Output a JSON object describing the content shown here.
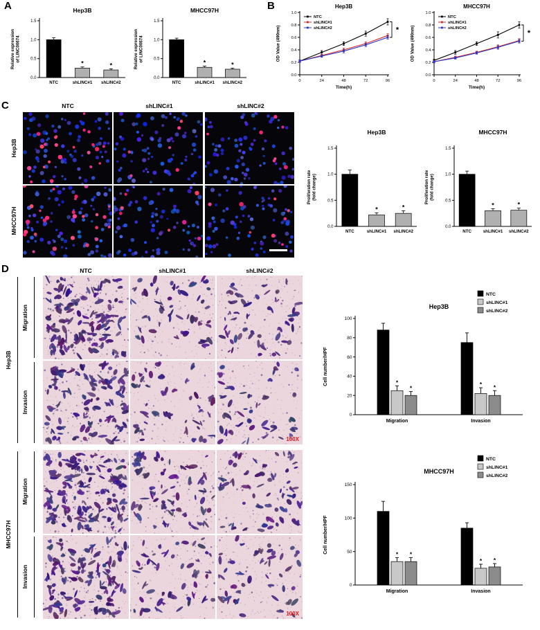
{
  "panels": {
    "A": "A",
    "B": "B",
    "C": "C",
    "D": "D"
  },
  "panelC": {
    "col_labels": [
      "NTC",
      "shLINC#1",
      "shLINC#2"
    ],
    "row_labels": [
      "Hep3B",
      "MHCC97H"
    ],
    "stain_colors": {
      "nuclei": "#3342d6",
      "proliferating": "#e8357d",
      "background": "#06060a"
    },
    "images": [
      {
        "cell_line": "Hep3B",
        "treatment": "NTC",
        "blue_cells": 80,
        "red_cells": 22
      },
      {
        "cell_line": "Hep3B",
        "treatment": "shLINC#1",
        "blue_cells": 85,
        "red_cells": 6
      },
      {
        "cell_line": "Hep3B",
        "treatment": "shLINC#2",
        "blue_cells": 78,
        "red_cells": 7
      },
      {
        "cell_line": "MHCC97H",
        "treatment": "NTC",
        "blue_cells": 90,
        "red_cells": 26
      },
      {
        "cell_line": "MHCC97H",
        "treatment": "shLINC#1",
        "blue_cells": 82,
        "red_cells": 7
      },
      {
        "cell_line": "MHCC97H",
        "treatment": "shLINC#2",
        "blue_cells": 80,
        "red_cells": 8,
        "scalebar": true
      }
    ]
  },
  "panelD": {
    "col_labels": [
      "NTC",
      "shLINC#1",
      "shLINC#2"
    ],
    "row_groups": [
      {
        "cell_line": "Hep3B",
        "assays": [
          "Migration",
          "Invasion"
        ]
      },
      {
        "cell_line": "MHCC97H",
        "assays": [
          "Migration",
          "Invasion"
        ]
      }
    ],
    "stain_colors": {
      "background": "#ecd6dd",
      "cells": "#4a2d7a"
    },
    "mag_color": "#e01515",
    "images": [
      {
        "cell_line": "Hep3B",
        "assay": "Migration",
        "treatment": "NTC",
        "cells": 130
      },
      {
        "cell_line": "Hep3B",
        "assay": "Migration",
        "treatment": "shLINC#1",
        "cells": 48
      },
      {
        "cell_line": "Hep3B",
        "assay": "Migration",
        "treatment": "shLINC#2",
        "cells": 52
      },
      {
        "cell_line": "Hep3B",
        "assay": "Invasion",
        "treatment": "NTC",
        "cells": 100
      },
      {
        "cell_line": "Hep3B",
        "assay": "Invasion",
        "treatment": "shLINC#1",
        "cells": 42
      },
      {
        "cell_line": "Hep3B",
        "assay": "Invasion",
        "treatment": "shLINC#2",
        "cells": 40,
        "mag_label": "100X"
      },
      {
        "cell_line": "MHCC97H",
        "assay": "Migration",
        "treatment": "NTC",
        "cells": 140
      },
      {
        "cell_line": "MHCC97H",
        "assay": "Migration",
        "treatment": "shLINC#1",
        "cells": 62
      },
      {
        "cell_line": "MHCC97H",
        "assay": "Migration",
        "treatment": "shLINC#2",
        "cells": 56
      },
      {
        "cell_line": "MHCC97H",
        "assay": "Invasion",
        "treatment": "NTC",
        "cells": 108
      },
      {
        "cell_line": "MHCC97H",
        "assay": "Invasion",
        "treatment": "shLINC#1",
        "cells": 46
      },
      {
        "cell_line": "MHCC97H",
        "assay": "Invasion",
        "treatment": "shLINC#2",
        "cells": 44,
        "mag_label": "100X"
      }
    ]
  },
  "chart_data": [
    {
      "id": "expr_hep3b",
      "type": "bar",
      "title": "Hep3B",
      "ylabel": "Relative expression\nof LINC00674",
      "categories": [
        "NTC",
        "shLINC#1",
        "shLINC#2"
      ],
      "values": [
        1.0,
        0.25,
        0.2
      ],
      "errors": [
        0.05,
        0.03,
        0.03
      ],
      "sig": [
        "",
        "*",
        "*"
      ],
      "colors": [
        "#000000",
        "#b0b0b0",
        "#b0b0b0"
      ],
      "ylim": [
        0,
        1.5
      ],
      "yticks": [
        0,
        0.5,
        1.0,
        1.5
      ],
      "tick_decimals": 1
    },
    {
      "id": "expr_mhcc97h",
      "type": "bar",
      "title": "MHCC97H",
      "ylabel": "Relative expression\nof LINC00674",
      "categories": [
        "NTC",
        "shLINC#1",
        "shLINC#2"
      ],
      "values": [
        1.0,
        0.27,
        0.22
      ],
      "errors": [
        0.04,
        0.03,
        0.03
      ],
      "sig": [
        "",
        "*",
        "*"
      ],
      "colors": [
        "#000000",
        "#b0b0b0",
        "#b0b0b0"
      ],
      "ylim": [
        0,
        1.5
      ],
      "yticks": [
        0,
        0.5,
        1.0,
        1.5
      ],
      "tick_decimals": 1
    },
    {
      "id": "growth_hep3b",
      "type": "line",
      "title": "Hep3B",
      "xlabel": "Time(h)",
      "ylabel": "OD Value (490nm)",
      "x": [
        0,
        24,
        48,
        72,
        96
      ],
      "ylim": [
        0,
        1.0
      ],
      "yticks": [
        0,
        0.2,
        0.4,
        0.6,
        0.8,
        1.0
      ],
      "tick_decimals": 1,
      "sig": "*",
      "series": [
        {
          "name": "NTC",
          "color": "#000000",
          "values": [
            0.22,
            0.36,
            0.5,
            0.66,
            0.85
          ],
          "errors": [
            0.02,
            0.03,
            0.03,
            0.04,
            0.05
          ]
        },
        {
          "name": "shLINC#1",
          "color": "#d42a2a",
          "values": [
            0.22,
            0.31,
            0.4,
            0.5,
            0.63
          ],
          "errors": [
            0.02,
            0.02,
            0.03,
            0.03,
            0.03
          ]
        },
        {
          "name": "shLINC#2",
          "color": "#2a35c8",
          "values": [
            0.22,
            0.3,
            0.38,
            0.48,
            0.6
          ],
          "errors": [
            0.02,
            0.02,
            0.03,
            0.03,
            0.03
          ]
        }
      ]
    },
    {
      "id": "growth_mhcc97h",
      "type": "line",
      "title": "MHCC97H",
      "xlabel": "Time(h)",
      "ylabel": "OD Value (490nm)",
      "x": [
        0,
        24,
        48,
        72,
        96
      ],
      "ylim": [
        0,
        1.0
      ],
      "yticks": [
        0,
        0.2,
        0.4,
        0.6,
        0.8,
        1.0
      ],
      "tick_decimals": 1,
      "sig": "*",
      "series": [
        {
          "name": "NTC",
          "color": "#000000",
          "values": [
            0.23,
            0.36,
            0.5,
            0.64,
            0.8
          ],
          "errors": [
            0.02,
            0.03,
            0.03,
            0.05,
            0.05
          ]
        },
        {
          "name": "shLINC#1",
          "color": "#d42a2a",
          "values": [
            0.21,
            0.28,
            0.36,
            0.45,
            0.55
          ],
          "errors": [
            0.02,
            0.02,
            0.02,
            0.03,
            0.03
          ]
        },
        {
          "name": "shLINC#2",
          "color": "#2a35c8",
          "values": [
            0.21,
            0.27,
            0.35,
            0.44,
            0.54
          ],
          "errors": [
            0.02,
            0.02,
            0.02,
            0.03,
            0.03
          ]
        }
      ]
    },
    {
      "id": "prolif_hep3b",
      "type": "bar",
      "title": "Hep3B",
      "ylabel": "Proliferation rate\n(fold change)",
      "categories": [
        "NTC",
        "shLINC#1",
        "shLINC#2"
      ],
      "values": [
        1.0,
        0.22,
        0.25
      ],
      "errors": [
        0.08,
        0.04,
        0.05
      ],
      "sig": [
        "",
        "*",
        "*"
      ],
      "colors": [
        "#000000",
        "#b0b0b0",
        "#b0b0b0"
      ],
      "ylim": [
        0,
        1.5
      ],
      "yticks": [
        0,
        0.5,
        1.0,
        1.5
      ],
      "tick_decimals": 1
    },
    {
      "id": "prolif_mhcc97h",
      "type": "bar",
      "title": "MHCC97H",
      "ylabel": "Proliferation rate\n(fold change)",
      "categories": [
        "NTC",
        "shLINC#1",
        "shLINC#2"
      ],
      "values": [
        1.0,
        0.3,
        0.31
      ],
      "errors": [
        0.06,
        0.04,
        0.04
      ],
      "sig": [
        "",
        "*",
        "*"
      ],
      "colors": [
        "#000000",
        "#b0b0b0",
        "#b0b0b0"
      ],
      "ylim": [
        0,
        1.5
      ],
      "yticks": [
        0,
        0.5,
        1.0,
        1.5
      ],
      "tick_decimals": 1
    },
    {
      "id": "transwell_hep3b",
      "type": "grouped_bar",
      "title": "Hep3B",
      "ylabel": "Cell number/HPF",
      "categories": [
        "Migration",
        "Invasion"
      ],
      "ylim": [
        0,
        100
      ],
      "yticks": [
        0,
        20,
        40,
        60,
        80,
        100
      ],
      "tick_decimals": 0,
      "series": [
        {
          "name": "NTC",
          "color": "#000000",
          "values": [
            88,
            75
          ],
          "errors": [
            7,
            10
          ]
        },
        {
          "name": "shLINC#1",
          "color": "#c8c8c8",
          "values": [
            25,
            22
          ],
          "errors": [
            5,
            6
          ],
          "sig": [
            "*",
            "*"
          ]
        },
        {
          "name": "shLINC#2",
          "color": "#8c8c8c",
          "values": [
            20,
            20
          ],
          "errors": [
            4,
            5
          ],
          "sig": [
            "*",
            "*"
          ]
        }
      ]
    },
    {
      "id": "transwell_mhcc97h",
      "type": "grouped_bar",
      "title": "MHCC97H",
      "ylabel": "Cell number/HPF",
      "categories": [
        "Migration",
        "Invasion"
      ],
      "ylim": [
        0,
        150
      ],
      "yticks": [
        0,
        50,
        100,
        150
      ],
      "tick_decimals": 0,
      "series": [
        {
          "name": "NTC",
          "color": "#000000",
          "values": [
            110,
            85
          ],
          "errors": [
            15,
            8
          ]
        },
        {
          "name": "shLINC#1",
          "color": "#c8c8c8",
          "values": [
            35,
            25
          ],
          "errors": [
            6,
            6
          ],
          "sig": [
            "*",
            "*"
          ]
        },
        {
          "name": "shLINC#2",
          "color": "#8c8c8c",
          "values": [
            35,
            27
          ],
          "errors": [
            6,
            5
          ],
          "sig": [
            "*",
            "*"
          ]
        }
      ]
    }
  ]
}
